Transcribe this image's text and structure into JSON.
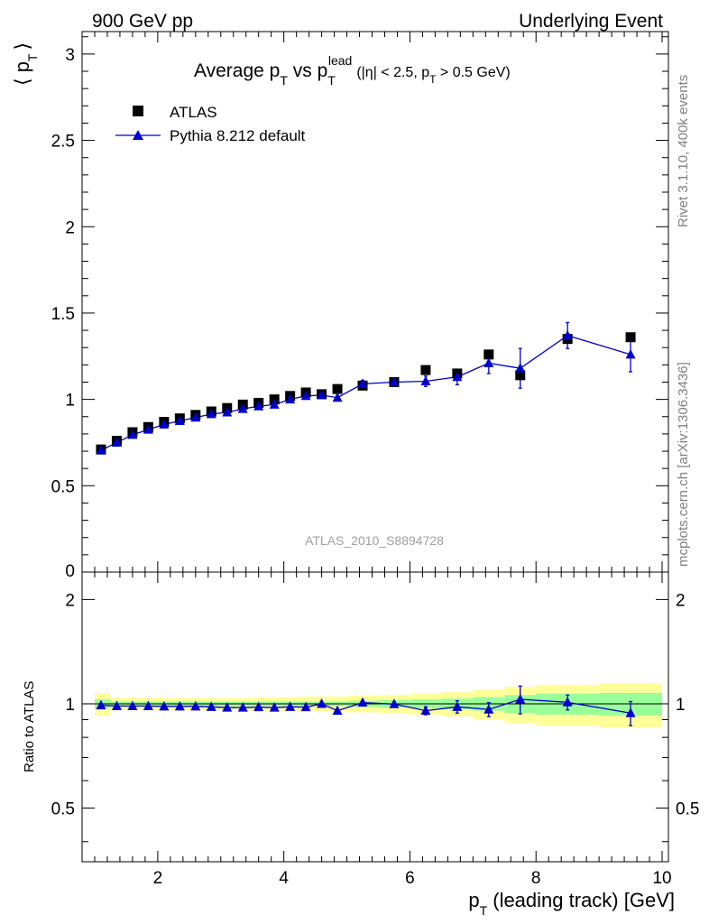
{
  "header": {
    "left": "900 GeV pp",
    "right": "Underlying Event"
  },
  "plot_title": {
    "main_a": "Average p",
    "main_sub": "T",
    "main_b": " vs p",
    "main_sub2": "T",
    "main_sup2": "lead",
    "cut_a": "(|η| < 2.5, p",
    "cut_sub": "T",
    "cut_b": " > 0.5 GeV)"
  },
  "y_label_top": {
    "open": "⟨ p",
    "sub": "T",
    "close": "⟩"
  },
  "y_label_bottom": "Ratio to ATLAS",
  "x_label": {
    "a": "p",
    "sub": "T",
    "b": " (leading track) [GeV]"
  },
  "side_text_upper": "Rivet 3.1.10,  400k events",
  "side_text_lower": "mcplots.cern.ch [arXiv:1306.3436]",
  "watermark": "ATLAS_2010_S8894728",
  "legend": {
    "data_label": "ATLAS",
    "mc_label": "Pythia 8.212 default"
  },
  "colors": {
    "data": "#000000",
    "mc": "#0000cc",
    "band_inner": "#99ff99",
    "band_outer": "#ffff99",
    "side_text": "#808080"
  },
  "chart_data": [
    {
      "type": "scatter",
      "panel": "main",
      "xlim": [
        0.8,
        10.1
      ],
      "ylim": [
        0,
        3.13
      ],
      "x_ticks": [
        2,
        4,
        6,
        8,
        10
      ],
      "y_ticks": [
        0.5,
        1,
        1.5,
        2,
        2.5,
        3
      ],
      "y_tick_labels": [
        "0.5",
        "1",
        "1.5",
        "2",
        "2.5",
        "3"
      ],
      "y_zero_label": "0",
      "x_tick_labels": [
        "2",
        "4",
        "6",
        "8",
        "10"
      ],
      "series": [
        {
          "name": "ATLAS",
          "marker": "square",
          "x": [
            1.1,
            1.35,
            1.6,
            1.85,
            2.1,
            2.35,
            2.6,
            2.85,
            3.1,
            3.35,
            3.6,
            3.85,
            4.1,
            4.35,
            4.6,
            4.85,
            5.25,
            5.75,
            6.25,
            6.75,
            7.25,
            7.75,
            8.5,
            9.5
          ],
          "y": [
            0.71,
            0.76,
            0.81,
            0.84,
            0.87,
            0.89,
            0.91,
            0.93,
            0.95,
            0.97,
            0.98,
            1.0,
            1.02,
            1.04,
            1.03,
            1.06,
            1.08,
            1.1,
            1.17,
            1.15,
            1.26,
            1.14,
            1.35,
            1.36
          ]
        },
        {
          "name": "Pythia 8.212 default",
          "marker": "triangle",
          "x": [
            1.1,
            1.35,
            1.6,
            1.85,
            2.1,
            2.35,
            2.6,
            2.85,
            3.1,
            3.35,
            3.6,
            3.85,
            4.1,
            4.35,
            4.6,
            4.85,
            5.25,
            5.75,
            6.25,
            6.75,
            7.25,
            7.75,
            8.5,
            9.5
          ],
          "y": [
            0.705,
            0.75,
            0.795,
            0.825,
            0.855,
            0.875,
            0.895,
            0.915,
            0.925,
            0.945,
            0.96,
            0.97,
            1.0,
            1.02,
            1.025,
            1.01,
            1.09,
            1.1,
            1.105,
            1.13,
            1.21,
            1.18,
            1.37,
            1.26
          ],
          "yerr": [
            0.005,
            0.005,
            0.005,
            0.005,
            0.005,
            0.006,
            0.006,
            0.007,
            0.007,
            0.008,
            0.009,
            0.01,
            0.011,
            0.012,
            0.013,
            0.014,
            0.02,
            0.02,
            0.03,
            0.045,
            0.06,
            0.115,
            0.075,
            0.1
          ]
        }
      ],
      "bins": [
        [
          1.0,
          1.25
        ],
        [
          1.25,
          1.5
        ],
        [
          1.5,
          1.75
        ],
        [
          1.75,
          2.0
        ],
        [
          2.0,
          2.25
        ],
        [
          2.25,
          2.5
        ],
        [
          2.5,
          2.75
        ],
        [
          2.75,
          3.0
        ],
        [
          3.0,
          3.25
        ],
        [
          3.25,
          3.5
        ],
        [
          3.5,
          3.75
        ],
        [
          3.75,
          4.0
        ],
        [
          4.0,
          4.25
        ],
        [
          4.25,
          4.5
        ],
        [
          4.5,
          4.75
        ],
        [
          4.75,
          5.0
        ],
        [
          5.0,
          5.5
        ],
        [
          5.5,
          6.0
        ],
        [
          6.0,
          6.5
        ],
        [
          6.5,
          7.0
        ],
        [
          7.0,
          7.5
        ],
        [
          7.5,
          8.0
        ],
        [
          8.0,
          9.0
        ],
        [
          9.0,
          10.0
        ]
      ]
    },
    {
      "type": "scatter",
      "panel": "ratio",
      "xlim": [
        0.8,
        10.1
      ],
      "ylim": [
        0.35,
        2.4
      ],
      "log_y": true,
      "y_ticks": [
        0.5,
        1,
        2
      ],
      "y_tick_labels": [
        "0.5",
        "1",
        "2"
      ],
      "x_ticks": [
        2,
        4,
        6,
        8,
        10
      ],
      "x_tick_labels": [
        "2",
        "4",
        "6",
        "8",
        "10"
      ],
      "reference_line": 1.0,
      "series": [
        {
          "name": "Pythia 8.212 default",
          "marker": "triangle",
          "x": [
            1.1,
            1.35,
            1.6,
            1.85,
            2.1,
            2.35,
            2.6,
            2.85,
            3.1,
            3.35,
            3.6,
            3.85,
            4.1,
            4.35,
            4.6,
            4.85,
            5.25,
            5.75,
            6.25,
            6.75,
            7.25,
            7.75,
            8.5,
            9.5
          ],
          "y": [
            0.99,
            0.985,
            0.985,
            0.985,
            0.983,
            0.983,
            0.983,
            0.98,
            0.975,
            0.975,
            0.978,
            0.975,
            0.98,
            0.978,
            1.0,
            0.955,
            1.008,
            0.998,
            0.955,
            0.98,
            0.963,
            1.03,
            1.01,
            0.94
          ],
          "yerr": [
            0.005,
            0.005,
            0.005,
            0.005,
            0.005,
            0.006,
            0.006,
            0.007,
            0.007,
            0.008,
            0.009,
            0.01,
            0.011,
            0.012,
            0.013,
            0.014,
            0.015,
            0.015,
            0.025,
            0.04,
            0.045,
            0.095,
            0.05,
            0.075
          ]
        }
      ],
      "band_inner_halfwidth": [
        0.03,
        0.015,
        0.015,
        0.015,
        0.015,
        0.015,
        0.015,
        0.015,
        0.015,
        0.015,
        0.015,
        0.015,
        0.015,
        0.015,
        0.015,
        0.015,
        0.02,
        0.025,
        0.03,
        0.035,
        0.045,
        0.06,
        0.07,
        0.075
      ],
      "band_outer_halfwidth": [
        0.075,
        0.04,
        0.04,
        0.04,
        0.04,
        0.04,
        0.04,
        0.04,
        0.04,
        0.04,
        0.045,
        0.045,
        0.045,
        0.05,
        0.05,
        0.05,
        0.055,
        0.06,
        0.07,
        0.08,
        0.1,
        0.12,
        0.135,
        0.145
      ]
    }
  ]
}
